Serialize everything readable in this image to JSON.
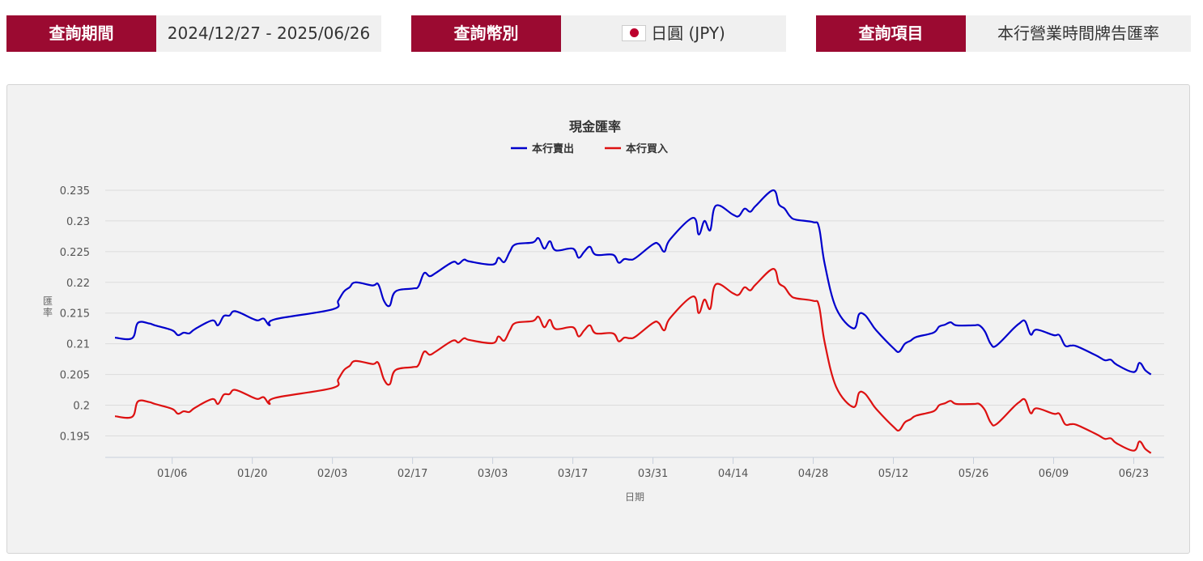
{
  "filters": {
    "period": {
      "label": "查詢期間",
      "value": "2024/12/27 - 2025/06/26"
    },
    "currency": {
      "label": "查詢幣別",
      "value": "日圓 (JPY)",
      "flag": "japan-flag-icon"
    },
    "item": {
      "label": "查詢項目",
      "value": "本行營業時間牌告匯率"
    }
  },
  "colors": {
    "label_bg": "#9b0a31",
    "sell": "#0000cc",
    "buy": "#dd1111"
  },
  "chart_data": {
    "type": "line",
    "title": "現金匯率",
    "xlabel": "日期",
    "ylabel": "匯率",
    "x_ticks": [
      "01/06",
      "01/20",
      "02/03",
      "02/17",
      "03/03",
      "03/17",
      "03/31",
      "04/14",
      "04/28",
      "05/12",
      "05/26",
      "06/09",
      "06/23"
    ],
    "y_ticks": [
      "0.235",
      "0.23",
      "0.225",
      "0.22",
      "0.215",
      "0.21",
      "0.205",
      "0.2",
      "0.195"
    ],
    "ylim": [
      0.1915,
      0.235
    ],
    "legend_position": "top-center",
    "grid": true,
    "series": [
      {
        "name": "本行賣出",
        "color": "#0000cc",
        "points": [
          [
            "12/27",
            0.211
          ],
          [
            "12/30",
            0.2109
          ],
          [
            "12/31",
            0.2134
          ],
          [
            "01/02",
            0.2133
          ],
          [
            "01/03",
            0.213
          ],
          [
            "01/06",
            0.2122
          ],
          [
            "01/07",
            0.2114
          ],
          [
            "01/08",
            0.2118
          ],
          [
            "01/09",
            0.2117
          ],
          [
            "01/10",
            0.2124
          ],
          [
            "01/13",
            0.2138
          ],
          [
            "01/14",
            0.213
          ],
          [
            "01/15",
            0.2145
          ],
          [
            "01/16",
            0.2146
          ],
          [
            "01/17",
            0.2153
          ],
          [
            "01/20",
            0.2141
          ],
          [
            "01/21",
            0.2138
          ],
          [
            "01/22",
            0.2141
          ],
          [
            "01/23",
            0.213
          ],
          [
            "01/24",
            0.214
          ],
          [
            "02/03",
            0.2156
          ],
          [
            "02/04",
            0.217
          ],
          [
            "02/05",
            0.2185
          ],
          [
            "02/06",
            0.2192
          ],
          [
            "02/07",
            0.22
          ],
          [
            "02/10",
            0.2195
          ],
          [
            "02/11",
            0.2197
          ],
          [
            "02/12",
            0.217
          ],
          [
            "02/13",
            0.2162
          ],
          [
            "02/14",
            0.2185
          ],
          [
            "02/17",
            0.219
          ],
          [
            "02/18",
            0.2193
          ],
          [
            "02/19",
            0.2215
          ],
          [
            "02/20",
            0.221
          ],
          [
            "02/21",
            0.2215
          ],
          [
            "02/24",
            0.2233
          ],
          [
            "02/25",
            0.223
          ],
          [
            "02/26",
            0.2237
          ],
          [
            "02/27",
            0.2234
          ],
          [
            "03/03",
            0.2229
          ],
          [
            "03/04",
            0.224
          ],
          [
            "03/05",
            0.2233
          ],
          [
            "03/06",
            0.225
          ],
          [
            "03/07",
            0.2262
          ],
          [
            "03/10",
            0.2265
          ],
          [
            "03/11",
            0.2272
          ],
          [
            "03/12",
            0.2255
          ],
          [
            "03/13",
            0.2267
          ],
          [
            "03/14",
            0.2252
          ],
          [
            "03/17",
            0.2255
          ],
          [
            "03/18",
            0.224
          ],
          [
            "03/19",
            0.225
          ],
          [
            "03/20",
            0.2258
          ],
          [
            "03/21",
            0.2245
          ],
          [
            "03/24",
            0.2245
          ],
          [
            "03/25",
            0.2232
          ],
          [
            "03/26",
            0.2238
          ],
          [
            "03/27",
            0.2237
          ],
          [
            "03/28",
            0.224
          ],
          [
            "03/31",
            0.2262
          ],
          [
            "04/01",
            0.2262
          ],
          [
            "04/02",
            0.225
          ],
          [
            "04/03",
            0.227
          ],
          [
            "04/07",
            0.2305
          ],
          [
            "04/08",
            0.2278
          ],
          [
            "04/09",
            0.23
          ],
          [
            "04/10",
            0.2285
          ],
          [
            "04/11",
            0.2325
          ],
          [
            "04/14",
            0.231
          ],
          [
            "04/15",
            0.2308
          ],
          [
            "04/16",
            0.232
          ],
          [
            "04/17",
            0.2315
          ],
          [
            "04/18",
            0.2325
          ],
          [
            "04/21",
            0.235
          ],
          [
            "04/22",
            0.2327
          ],
          [
            "04/23",
            0.232
          ],
          [
            "04/24",
            0.2307
          ],
          [
            "04/25",
            0.2302
          ],
          [
            "04/28",
            0.2298
          ],
          [
            "04/29",
            0.229
          ],
          [
            "04/30",
            0.223
          ],
          [
            "05/02",
            0.2158
          ],
          [
            "05/05",
            0.2125
          ],
          [
            "05/06",
            0.2148
          ],
          [
            "05/07",
            0.2147
          ],
          [
            "05/08",
            0.2135
          ],
          [
            "05/09",
            0.2122
          ],
          [
            "05/12",
            0.2093
          ],
          [
            "05/13",
            0.2087
          ],
          [
            "05/14",
            0.21
          ],
          [
            "05/15",
            0.2105
          ],
          [
            "05/16",
            0.2111
          ],
          [
            "05/19",
            0.2118
          ],
          [
            "05/20",
            0.2128
          ],
          [
            "05/21",
            0.2131
          ],
          [
            "05/22",
            0.2135
          ],
          [
            "05/23",
            0.213
          ],
          [
            "05/26",
            0.213
          ],
          [
            "05/27",
            0.213
          ],
          [
            "05/28",
            0.212
          ],
          [
            "05/29",
            0.21
          ],
          [
            "05/30",
            0.2097
          ],
          [
            "06/02",
            0.2125
          ],
          [
            "06/03",
            0.2133
          ],
          [
            "06/04",
            0.2137
          ],
          [
            "06/05",
            0.2115
          ],
          [
            "06/06",
            0.2123
          ],
          [
            "06/09",
            0.2114
          ],
          [
            "06/10",
            0.2114
          ],
          [
            "06/11",
            0.2097
          ],
          [
            "06/12",
            0.2097
          ],
          [
            "06/13",
            0.2096
          ],
          [
            "06/16",
            0.2083
          ],
          [
            "06/17",
            0.2078
          ],
          [
            "06/18",
            0.2073
          ],
          [
            "06/19",
            0.2074
          ],
          [
            "06/20",
            0.2066
          ],
          [
            "06/23",
            0.2054
          ],
          [
            "06/24",
            0.2069
          ],
          [
            "06/25",
            0.2057
          ],
          [
            "06/26",
            0.205
          ]
        ]
      },
      {
        "name": "本行買入",
        "color": "#dd1111",
        "points": [
          [
            "12/27",
            0.1982
          ],
          [
            "12/30",
            0.1981
          ],
          [
            "12/31",
            0.2006
          ],
          [
            "01/02",
            0.2005
          ],
          [
            "01/03",
            0.2002
          ],
          [
            "01/06",
            0.1994
          ],
          [
            "01/07",
            0.1986
          ],
          [
            "01/08",
            0.199
          ],
          [
            "01/09",
            0.1989
          ],
          [
            "01/10",
            0.1996
          ],
          [
            "01/13",
            0.201
          ],
          [
            "01/14",
            0.2002
          ],
          [
            "01/15",
            0.2017
          ],
          [
            "01/16",
            0.2018
          ],
          [
            "01/17",
            0.2025
          ],
          [
            "01/20",
            0.2013
          ],
          [
            "01/21",
            0.201
          ],
          [
            "01/22",
            0.2013
          ],
          [
            "01/23",
            0.2002
          ],
          [
            "01/24",
            0.2012
          ],
          [
            "02/03",
            0.2028
          ],
          [
            "02/04",
            0.2042
          ],
          [
            "02/05",
            0.2057
          ],
          [
            "02/06",
            0.2064
          ],
          [
            "02/07",
            0.2072
          ],
          [
            "02/10",
            0.2067
          ],
          [
            "02/11",
            0.2069
          ],
          [
            "02/12",
            0.2042
          ],
          [
            "02/13",
            0.2034
          ],
          [
            "02/14",
            0.2057
          ],
          [
            "02/17",
            0.2062
          ],
          [
            "02/18",
            0.2065
          ],
          [
            "02/19",
            0.2087
          ],
          [
            "02/20",
            0.2082
          ],
          [
            "02/21",
            0.2087
          ],
          [
            "02/24",
            0.2105
          ],
          [
            "02/25",
            0.2102
          ],
          [
            "02/26",
            0.2109
          ],
          [
            "02/27",
            0.2106
          ],
          [
            "03/03",
            0.2101
          ],
          [
            "03/04",
            0.2112
          ],
          [
            "03/05",
            0.2105
          ],
          [
            "03/06",
            0.2122
          ],
          [
            "03/07",
            0.2134
          ],
          [
            "03/10",
            0.2137
          ],
          [
            "03/11",
            0.2144
          ],
          [
            "03/12",
            0.2127
          ],
          [
            "03/13",
            0.2139
          ],
          [
            "03/14",
            0.2124
          ],
          [
            "03/17",
            0.2127
          ],
          [
            "03/18",
            0.2112
          ],
          [
            "03/19",
            0.2122
          ],
          [
            "03/20",
            0.213
          ],
          [
            "03/21",
            0.2117
          ],
          [
            "03/24",
            0.2117
          ],
          [
            "03/25",
            0.2104
          ],
          [
            "03/26",
            0.211
          ],
          [
            "03/27",
            0.2109
          ],
          [
            "03/28",
            0.2112
          ],
          [
            "03/31",
            0.2134
          ],
          [
            "04/01",
            0.2134
          ],
          [
            "04/02",
            0.2122
          ],
          [
            "04/03",
            0.2142
          ],
          [
            "04/07",
            0.2177
          ],
          [
            "04/08",
            0.215
          ],
          [
            "04/09",
            0.2172
          ],
          [
            "04/10",
            0.2157
          ],
          [
            "04/11",
            0.2197
          ],
          [
            "04/14",
            0.2182
          ],
          [
            "04/15",
            0.218
          ],
          [
            "04/16",
            0.2192
          ],
          [
            "04/17",
            0.2187
          ],
          [
            "04/18",
            0.2197
          ],
          [
            "04/21",
            0.2222
          ],
          [
            "04/22",
            0.2199
          ],
          [
            "04/23",
            0.2192
          ],
          [
            "04/24",
            0.2179
          ],
          [
            "04/25",
            0.2174
          ],
          [
            "04/28",
            0.217
          ],
          [
            "04/29",
            0.2162
          ],
          [
            "04/30",
            0.2102
          ],
          [
            "05/02",
            0.203
          ],
          [
            "05/05",
            0.1997
          ],
          [
            "05/06",
            0.202
          ],
          [
            "05/07",
            0.2019
          ],
          [
            "05/08",
            0.2007
          ],
          [
            "05/09",
            0.1994
          ],
          [
            "05/12",
            0.1965
          ],
          [
            "05/13",
            0.1959
          ],
          [
            "05/14",
            0.1972
          ],
          [
            "05/15",
            0.1977
          ],
          [
            "05/16",
            0.1983
          ],
          [
            "05/19",
            0.199
          ],
          [
            "05/20",
            0.2
          ],
          [
            "05/21",
            0.2003
          ],
          [
            "05/22",
            0.2007
          ],
          [
            "05/23",
            0.2002
          ],
          [
            "05/26",
            0.2002
          ],
          [
            "05/27",
            0.2002
          ],
          [
            "05/28",
            0.1992
          ],
          [
            "05/29",
            0.1972
          ],
          [
            "05/30",
            0.1969
          ],
          [
            "06/02",
            0.1997
          ],
          [
            "06/03",
            0.2005
          ],
          [
            "06/04",
            0.2009
          ],
          [
            "06/05",
            0.1987
          ],
          [
            "06/06",
            0.1995
          ],
          [
            "06/09",
            0.1986
          ],
          [
            "06/10",
            0.1986
          ],
          [
            "06/11",
            0.1969
          ],
          [
            "06/12",
            0.1969
          ],
          [
            "06/13",
            0.1968
          ],
          [
            "06/16",
            0.1955
          ],
          [
            "06/17",
            0.195
          ],
          [
            "06/18",
            0.1945
          ],
          [
            "06/19",
            0.1946
          ],
          [
            "06/20",
            0.1938
          ],
          [
            "06/23",
            0.1926
          ],
          [
            "06/24",
            0.1941
          ],
          [
            "06/25",
            0.1929
          ],
          [
            "06/26",
            0.1922
          ]
        ]
      }
    ]
  }
}
